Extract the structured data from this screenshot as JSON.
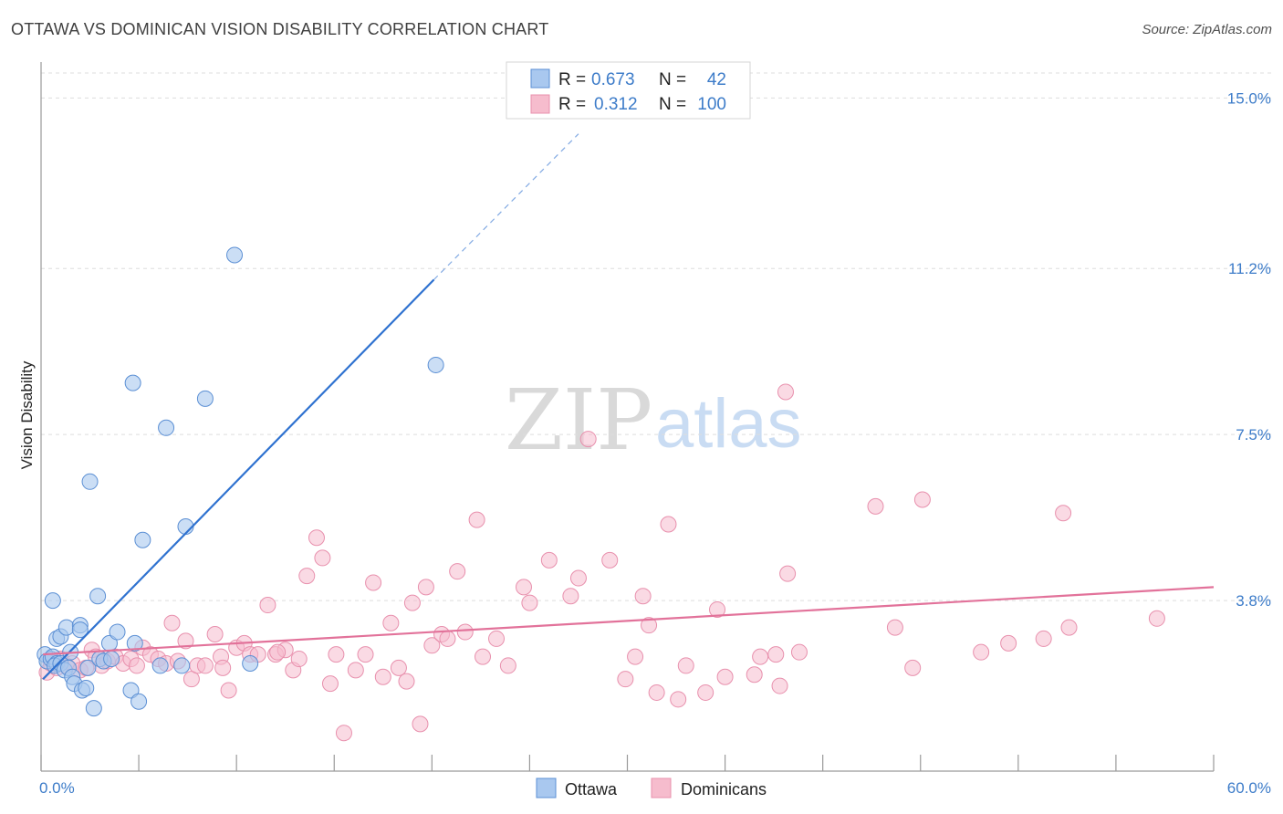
{
  "title": "OTTAWA VS DOMINICAN VISION DISABILITY CORRELATION CHART",
  "source": "Source: ZipAtlas.com",
  "watermark": {
    "zip": "ZIP",
    "atlas": "atlas"
  },
  "legend": {
    "r_label": "R =",
    "n_label": "N =",
    "ottawa": {
      "r": "0.673",
      "n": "42"
    },
    "dominicans": {
      "r": "0.312",
      "n": "100"
    }
  },
  "bottom_legend": {
    "ottawa": "Ottawa",
    "dominicans": "Dominicans"
  },
  "colors": {
    "ottawa_fill": "#a9c8ef",
    "ottawa_stroke": "#5b8fd4",
    "ottawa_line": "#2f72d0",
    "dom_fill": "#f6bccd",
    "dom_stroke": "#e890ad",
    "dom_line": "#e2729a",
    "tick_text": "#3d7cc9",
    "grid": "#dddddd"
  },
  "chart_data": {
    "type": "scatter",
    "title": "OTTAWA VS DOMINICAN VISION DISABILITY CORRELATION CHART",
    "xlabel": "",
    "ylabel": "Vision Disability",
    "xlim": [
      0,
      60
    ],
    "ylim": [
      0,
      15.8
    ],
    "x_tick_labels": [
      "0.0%",
      "60.0%"
    ],
    "y_ticks": [
      3.8,
      7.5,
      11.2,
      15.0
    ],
    "y_tick_labels": [
      "3.8%",
      "7.5%",
      "11.2%",
      "15.0%"
    ],
    "grid": true,
    "legend_position": "top-center",
    "series": [
      {
        "name": "Ottawa",
        "r": 0.673,
        "n": 42,
        "trend": {
          "x1": 0.1,
          "y1": 2.05,
          "x2": 20.1,
          "y2": 10.95,
          "dash_to_x": 27.5,
          "dash_to_y": 14.2
        },
        "points": [
          [
            0.2,
            2.6
          ],
          [
            0.3,
            2.45
          ],
          [
            0.5,
            2.5
          ],
          [
            0.6,
            2.55
          ],
          [
            0.8,
            2.4
          ],
          [
            0.7,
            2.35
          ],
          [
            1.0,
            2.4
          ],
          [
            1.2,
            2.25
          ],
          [
            1.4,
            2.3
          ],
          [
            0.6,
            3.8
          ],
          [
            0.8,
            2.95
          ],
          [
            1.0,
            3.0
          ],
          [
            1.3,
            3.2
          ],
          [
            1.5,
            2.65
          ],
          [
            1.6,
            2.1
          ],
          [
            1.7,
            1.95
          ],
          [
            2.0,
            3.25
          ],
          [
            2.0,
            3.15
          ],
          [
            2.1,
            1.8
          ],
          [
            2.3,
            1.85
          ],
          [
            2.4,
            2.3
          ],
          [
            2.7,
            1.4
          ],
          [
            2.9,
            3.9
          ],
          [
            3.0,
            2.5
          ],
          [
            3.2,
            2.45
          ],
          [
            3.5,
            2.85
          ],
          [
            3.6,
            2.5
          ],
          [
            3.9,
            3.1
          ],
          [
            4.6,
            1.8
          ],
          [
            4.8,
            2.85
          ],
          [
            5.0,
            1.55
          ],
          [
            5.2,
            5.15
          ],
          [
            6.1,
            2.35
          ],
          [
            6.4,
            7.65
          ],
          [
            7.2,
            2.35
          ],
          [
            7.4,
            5.45
          ],
          [
            8.4,
            8.3
          ],
          [
            9.9,
            11.5
          ],
          [
            10.7,
            2.4
          ],
          [
            20.2,
            9.05
          ],
          [
            2.5,
            6.45
          ],
          [
            4.7,
            8.65
          ]
        ]
      },
      {
        "name": "Dominicans",
        "r": 0.312,
        "n": 100,
        "trend": {
          "x1": 0.1,
          "y1": 2.6,
          "x2": 60,
          "y2": 4.1
        },
        "points": [
          [
            0.3,
            2.2
          ],
          [
            0.5,
            2.4
          ],
          [
            0.8,
            2.3
          ],
          [
            1.0,
            2.5
          ],
          [
            1.3,
            2.35
          ],
          [
            1.6,
            2.4
          ],
          [
            2.0,
            2.25
          ],
          [
            2.3,
            2.3
          ],
          [
            2.6,
            2.7
          ],
          [
            2.8,
            2.55
          ],
          [
            3.1,
            2.35
          ],
          [
            3.4,
            2.45
          ],
          [
            3.8,
            2.55
          ],
          [
            4.2,
            2.4
          ],
          [
            4.6,
            2.5
          ],
          [
            4.9,
            2.35
          ],
          [
            5.2,
            2.75
          ],
          [
            5.6,
            2.6
          ],
          [
            6.0,
            2.5
          ],
          [
            6.4,
            2.4
          ],
          [
            6.7,
            3.3
          ],
          [
            7.0,
            2.45
          ],
          [
            7.4,
            2.9
          ],
          [
            7.7,
            2.05
          ],
          [
            8.0,
            2.35
          ],
          [
            8.4,
            2.35
          ],
          [
            8.9,
            3.05
          ],
          [
            9.2,
            2.55
          ],
          [
            9.6,
            1.8
          ],
          [
            10.0,
            2.75
          ],
          [
            10.4,
            2.85
          ],
          [
            10.7,
            2.6
          ],
          [
            11.1,
            2.6
          ],
          [
            11.6,
            3.7
          ],
          [
            12.0,
            2.6
          ],
          [
            12.5,
            2.7
          ],
          [
            12.9,
            2.25
          ],
          [
            13.2,
            2.5
          ],
          [
            13.6,
            4.35
          ],
          [
            14.1,
            5.2
          ],
          [
            14.4,
            4.75
          ],
          [
            14.8,
            1.95
          ],
          [
            15.1,
            2.6
          ],
          [
            15.5,
            0.85
          ],
          [
            16.1,
            2.25
          ],
          [
            16.6,
            2.6
          ],
          [
            17.0,
            4.2
          ],
          [
            17.5,
            2.1
          ],
          [
            17.9,
            3.3
          ],
          [
            18.3,
            2.3
          ],
          [
            18.7,
            2.0
          ],
          [
            19.0,
            3.75
          ],
          [
            19.4,
            1.05
          ],
          [
            19.7,
            4.1
          ],
          [
            20.0,
            2.8
          ],
          [
            20.5,
            3.05
          ],
          [
            20.8,
            2.95
          ],
          [
            21.3,
            4.45
          ],
          [
            21.7,
            3.1
          ],
          [
            22.3,
            5.6
          ],
          [
            22.6,
            2.55
          ],
          [
            23.3,
            2.95
          ],
          [
            23.9,
            2.35
          ],
          [
            24.7,
            4.1
          ],
          [
            25.0,
            3.75
          ],
          [
            26.0,
            4.7
          ],
          [
            27.1,
            3.9
          ],
          [
            27.5,
            4.3
          ],
          [
            28.0,
            7.4
          ],
          [
            29.1,
            4.7
          ],
          [
            29.9,
            2.05
          ],
          [
            30.4,
            2.55
          ],
          [
            30.8,
            3.9
          ],
          [
            31.1,
            3.25
          ],
          [
            31.5,
            1.75
          ],
          [
            32.1,
            5.5
          ],
          [
            32.6,
            1.6
          ],
          [
            33.0,
            2.35
          ],
          [
            34.0,
            1.75
          ],
          [
            34.6,
            3.6
          ],
          [
            35.0,
            2.1
          ],
          [
            36.5,
            2.15
          ],
          [
            37.6,
            2.6
          ],
          [
            37.8,
            1.9
          ],
          [
            38.1,
            8.45
          ],
          [
            38.2,
            4.4
          ],
          [
            38.8,
            2.65
          ],
          [
            42.7,
            5.9
          ],
          [
            43.7,
            3.2
          ],
          [
            44.6,
            2.3
          ],
          [
            45.1,
            6.05
          ],
          [
            48.1,
            2.65
          ],
          [
            49.5,
            2.85
          ],
          [
            51.3,
            2.95
          ],
          [
            52.3,
            5.75
          ],
          [
            52.6,
            3.2
          ],
          [
            57.1,
            3.4
          ],
          [
            36.8,
            2.55
          ],
          [
            12.1,
            2.65
          ],
          [
            9.3,
            2.3
          ]
        ]
      }
    ]
  }
}
